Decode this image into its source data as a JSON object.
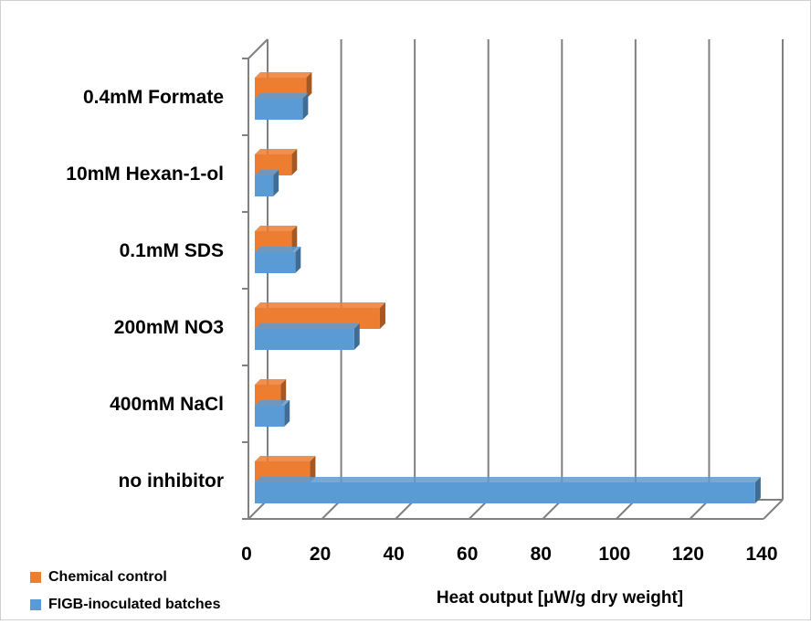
{
  "chart_data": {
    "type": "bar",
    "orientation": "horizontal",
    "three_d": true,
    "categories": [
      "no inhibitor",
      "400mM NaCl",
      "200mM NO3",
      "0.1mM SDS",
      "10mM Hexan-1-ol",
      "0.4mM Formate"
    ],
    "series": [
      {
        "name": "Chemical control",
        "color": "#ED7D31",
        "values": [
          15,
          7,
          34,
          10,
          10,
          14
        ]
      },
      {
        "name": "FIGB-inoculated batches",
        "color": "#5B9BD5",
        "values": [
          136,
          8,
          27,
          11,
          5,
          13
        ]
      }
    ],
    "xlabel": "Heat output [μW/g dry weight]",
    "ylabel": "",
    "title": "",
    "xlim": [
      0,
      140
    ],
    "xticks": [
      0,
      20,
      40,
      60,
      80,
      100,
      120,
      140
    ],
    "grid": "vertical",
    "legend_position": "bottom-left"
  }
}
